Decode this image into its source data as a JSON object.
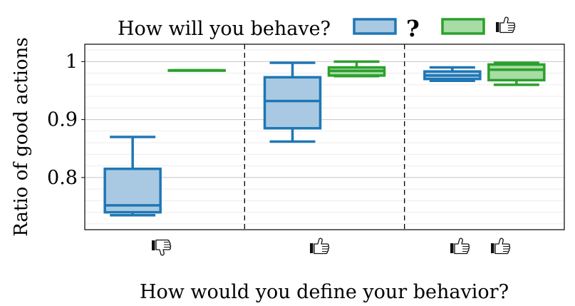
{
  "chart_data": {
    "type": "box",
    "legend_title": "How will you behave?",
    "legend_placement": "top",
    "series": [
      {
        "name": "?",
        "color": "#1f77b4",
        "fill": "#a9c9e3"
      },
      {
        "name": "thumbs-up",
        "color": "#2ca02c",
        "fill": "#a7dca4"
      }
    ],
    "xlabel": "How would you define your behavior?",
    "ylabel": "Ratio of good actions",
    "ylim": [
      0.71,
      1.03
    ],
    "yticks": [
      0.8,
      0.9,
      1.0
    ],
    "ytick_labels": [
      "0.8",
      "0.9",
      "1"
    ],
    "grid": true,
    "categories": [
      "thumbs-down",
      "thumbs-up",
      "thumbs-up thumbs-up"
    ],
    "boxes": [
      [
        {
          "whislo": 0.735,
          "q1": 0.74,
          "med": 0.752,
          "q3": 0.815,
          "whishi": 0.87
        },
        {
          "whislo": 0.985,
          "q1": 0.985,
          "med": 0.985,
          "q3": 0.985,
          "whishi": 0.985
        }
      ],
      [
        {
          "whislo": 0.862,
          "q1": 0.885,
          "med": 0.932,
          "q3": 0.973,
          "whishi": 0.998
        },
        {
          "whislo": 0.975,
          "q1": 0.976,
          "med": 0.984,
          "q3": 0.99,
          "whishi": 1.0
        }
      ],
      [
        {
          "whislo": 0.967,
          "q1": 0.97,
          "med": 0.976,
          "q3": 0.983,
          "whishi": 0.99
        },
        {
          "whislo": 0.96,
          "q1": 0.968,
          "med": 0.986,
          "q3": 0.995,
          "whishi": 0.998
        }
      ]
    ]
  }
}
